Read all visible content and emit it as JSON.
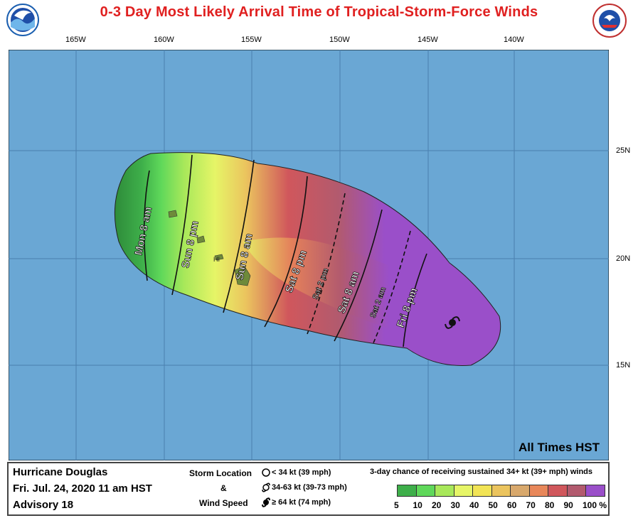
{
  "title": "0-3 Day Most Likely Arrival Time of Tropical-Storm-Force Winds",
  "logos": {
    "left": "NOAA",
    "right": "NATIONAL WEATHER SERVICE"
  },
  "lon_ticks": [
    "165W",
    "160W",
    "155W",
    "150W",
    "145W",
    "140W"
  ],
  "lat_ticks": [
    "25N",
    "20N",
    "15N"
  ],
  "island_label": "HI",
  "times_note": "All Times HST",
  "arrival_labels": [
    "Mon 8 am",
    "Sun 8 pm",
    "Sun 8 am",
    "Sat 8 pm",
    "Sat 2 pm",
    "Sat 8 am",
    "Sat 2 am",
    "Fri 8 pm"
  ],
  "storm": {
    "name": "Hurricane Douglas",
    "date": "Fri. Jul. 24, 2020  11 am HST",
    "advisory": "Advisory 18"
  },
  "storm_legend": {
    "title_1": "Storm Location",
    "title_2": "&",
    "title_3": "Wind Speed",
    "items": [
      "< 34 kt (39 mph)",
      "34-63 kt (39-73 mph)",
      "≥ 64 kt (74 mph)"
    ]
  },
  "prob_legend": {
    "title": "3-day chance of receiving sustained 34+ kt (39+ mph) winds",
    "labels": [
      "5",
      "10",
      "20",
      "30",
      "40",
      "50",
      "60",
      "70",
      "80",
      "90",
      "100 %"
    ],
    "colors": [
      "#3eaf4a",
      "#5fd85a",
      "#a8e85a",
      "#e6f567",
      "#f2e455",
      "#ebc45e",
      "#d8a86c",
      "#e8875a",
      "#d0575c",
      "#b25a6e",
      "#9a4fc9"
    ]
  },
  "colors": {
    "ocean": "#6aa7d4",
    "land_base": "#2e8b3a",
    "title": "#e02020"
  }
}
